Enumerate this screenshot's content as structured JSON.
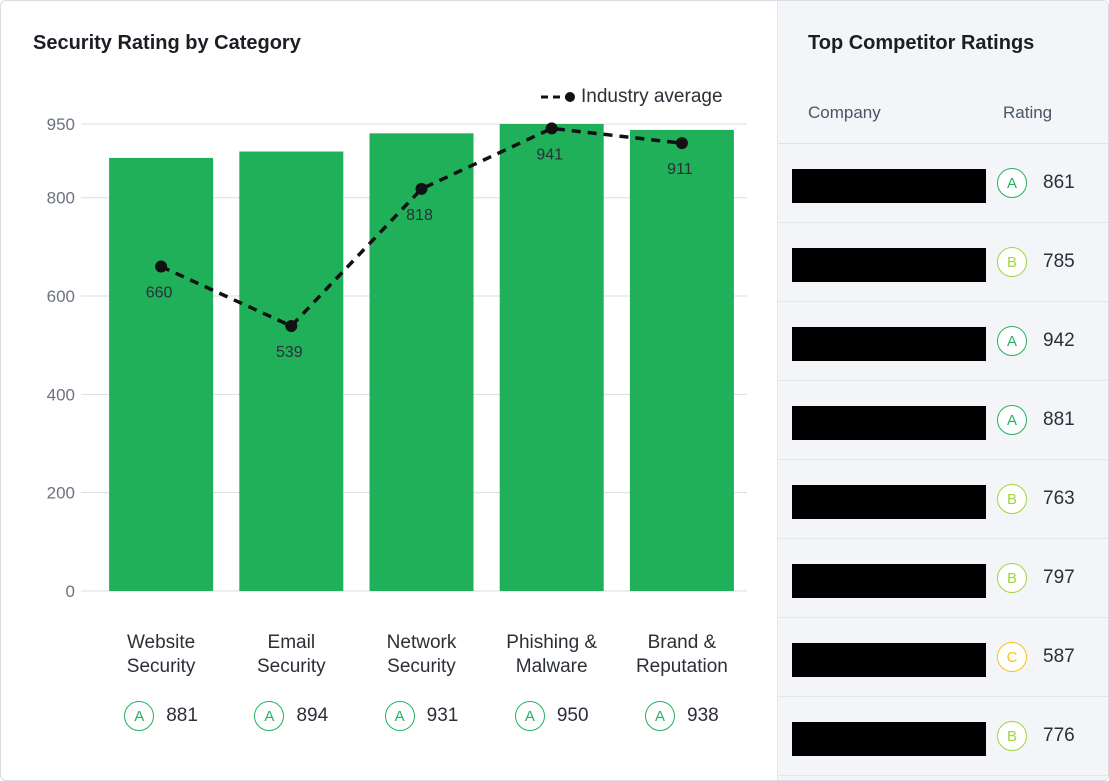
{
  "chart_data": {
    "type": "bar",
    "title": "Security Rating by Category",
    "categories": [
      "Website Security",
      "Email Security",
      "Network Security",
      "Phishing & Malware",
      "Brand & Reputation"
    ],
    "category_lines": [
      [
        "Website",
        "Security"
      ],
      [
        "Email",
        "Security"
      ],
      [
        "Network",
        "Security"
      ],
      [
        "Phishing &",
        "Malware"
      ],
      [
        "Brand &",
        "Reputation"
      ]
    ],
    "series": [
      {
        "values": [
          881,
          894,
          931,
          950,
          938
        ],
        "type": "bar",
        "color": "#20b05a"
      },
      {
        "name": "Industry average",
        "type": "line",
        "style": "dashed",
        "color": "#111111",
        "values": [
          660,
          539,
          818,
          941,
          911
        ]
      }
    ],
    "category_grades": [
      "A",
      "A",
      "A",
      "A",
      "A"
    ],
    "category_values": [
      "881",
      "894",
      "931",
      "950",
      "938"
    ],
    "yticks": [
      0,
      200,
      400,
      600,
      800,
      950
    ],
    "ylim": [
      0,
      950
    ],
    "grid": true,
    "legend_placement": "top-right",
    "xlabel": "",
    "ylabel": ""
  },
  "legend": {
    "label": "Industry average"
  },
  "competitors": {
    "title": "Top Competitor Ratings",
    "col_company": "Company",
    "col_rating": "Rating",
    "rows": [
      {
        "grade": "A",
        "value": "861"
      },
      {
        "grade": "B",
        "value": "785"
      },
      {
        "grade": "A",
        "value": "942"
      },
      {
        "grade": "A",
        "value": "881"
      },
      {
        "grade": "B",
        "value": "763"
      },
      {
        "grade": "B",
        "value": "797"
      },
      {
        "grade": "C",
        "value": "587"
      },
      {
        "grade": "B",
        "value": "776"
      }
    ]
  }
}
